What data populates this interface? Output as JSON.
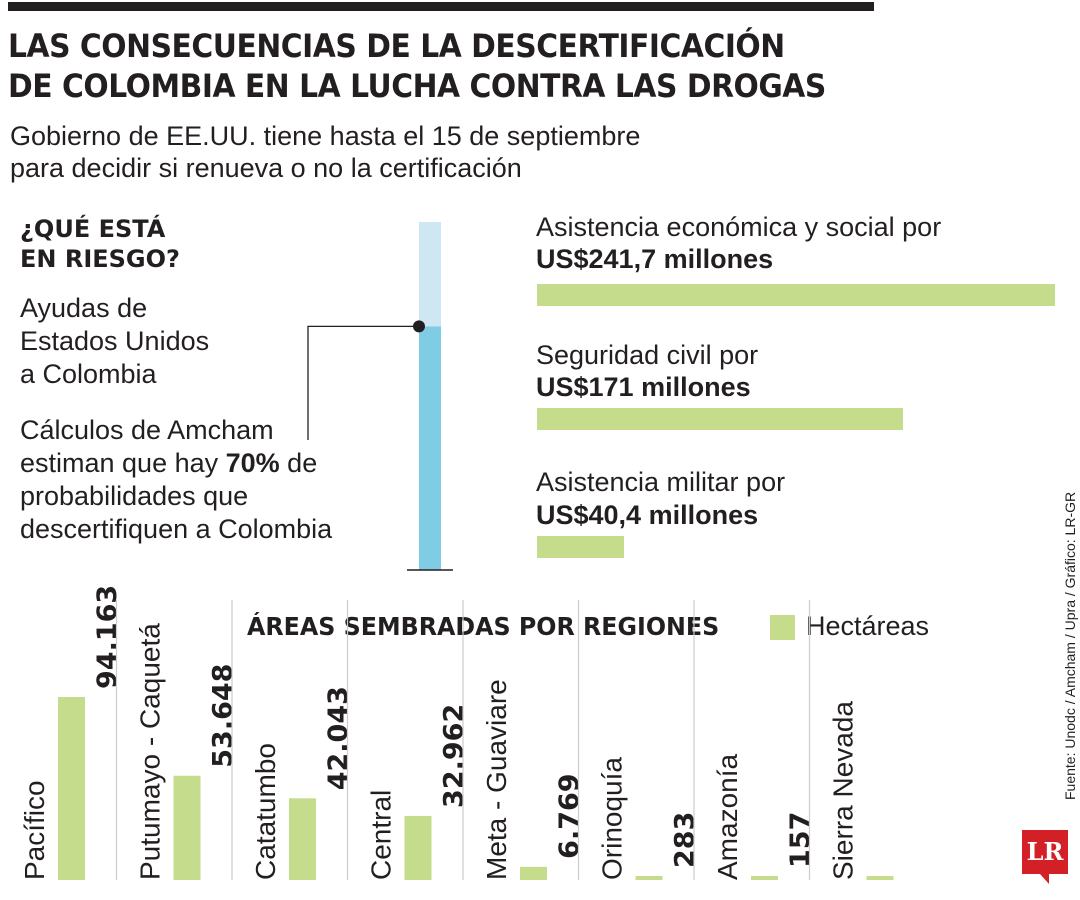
{
  "header": {
    "title_line1": "LAS CONSECUENCIAS DE LA DESCERTIFICACIÓN",
    "title_line2": "DE COLOMBIA EN LA LUCHA CONTRA LAS DROGAS",
    "subtitle_line1": "Gobierno de EE.UU. tiene hasta el 15 de septiembre",
    "subtitle_line2": "para decidir si renueva o no la certificación"
  },
  "risk": {
    "title_line1": "¿QUÉ ESTÁ",
    "title_line2": "EN RIESGO?",
    "aid_line1": "Ayudas de",
    "aid_line2": "Estados Unidos",
    "aid_line3": "a Colombia",
    "calc_line1": "Cálculos de Amcham",
    "calc_line2_pre": "estiman que hay ",
    "calc_pct": "70%",
    "calc_line2_post": " de",
    "calc_line3": "probabilidades que",
    "calc_line4": "descertifiquen a Colombia",
    "probability": 0.7,
    "colors": {
      "filled": "#7fcce4",
      "empty": "#cde8f2"
    }
  },
  "aid": {
    "items": [
      {
        "label": "Asistencia económica y social por",
        "value_text": "US$241,7 millones",
        "value": 241.7
      },
      {
        "label": "Seguridad civil por",
        "value_text": "US$171 millones",
        "value": 171
      },
      {
        "label": "Asistencia militar por",
        "value_text": "US$40,4 millones",
        "value": 40.4
      }
    ]
  },
  "source": "Fuente: Unodc / Amcham / Upra / Gráfico: LR-GR",
  "logo": "LR",
  "chart_data": {
    "type": "bar",
    "title": "ÁREAS SEMBRADAS POR REGIONES",
    "legend": [
      "Hectáreas"
    ],
    "categories": [
      "Pacífico",
      "Putumayo - Caquetá",
      "Catatumbo",
      "Central",
      "Meta - Guaviare",
      "Orinoquía",
      "Amazonía",
      "Sierra Nevada"
    ],
    "values": [
      94163,
      53648,
      42043,
      32962,
      6769,
      283,
      157,
      null
    ],
    "value_labels": [
      "94.163",
      "53.648",
      "42.043",
      "32.962",
      "6.769",
      "283",
      "157",
      ""
    ],
    "color": "#c4dc8c"
  }
}
